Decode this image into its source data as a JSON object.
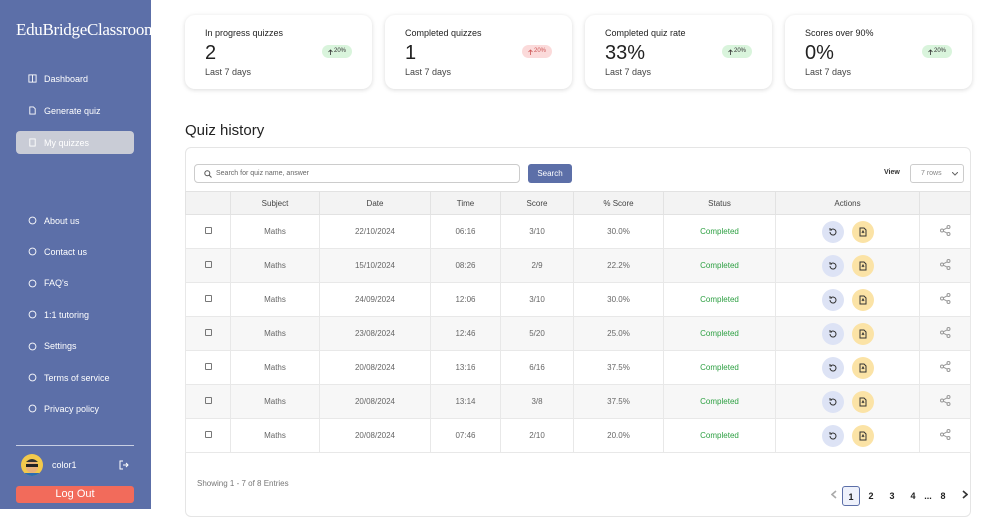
{
  "sidebar": {
    "brand": "EduBridgeClassroom",
    "nav": [
      "Dashboard",
      "Generate quiz",
      "My quizzes"
    ],
    "nav_bottom": [
      "About us",
      "Contact us",
      "FAQ's",
      "1:1 tutoring",
      "Settings",
      "Terms of service",
      "Privacy policy"
    ],
    "user": "color1",
    "logout": "Log Out"
  },
  "stats": [
    {
      "title": "In progress quizzes",
      "value": "2",
      "change": "20%",
      "period": "Last 7 days"
    },
    {
      "title": "Completed quizzes",
      "value": "1",
      "change": "20%",
      "period": "Last 7 days"
    },
    {
      "title": "Completed quiz rate",
      "value": "33%",
      "change": "20%",
      "period": "Last 7 days"
    },
    {
      "title": "Scores over 90%",
      "value": "0%",
      "change": "20%",
      "period": "Last 7 days"
    }
  ],
  "quiz_history": {
    "title": "Quiz history",
    "search_placeholder": "Search for quiz name, answer",
    "search_button": "Search",
    "view_label": "View",
    "view_select": "7 rows",
    "columns": [
      "Subject",
      "Date",
      "Time",
      "Score",
      "% Score",
      "Status",
      "Actions"
    ],
    "rows": [
      [
        "Maths",
        "22/10/2024",
        "06:16",
        "3/10",
        "30.0%",
        "Completed"
      ],
      [
        "Maths",
        "15/10/2024",
        "08:26",
        "2/9",
        "22.2%",
        "Completed"
      ],
      [
        "Maths",
        "24/09/2024",
        "12:06",
        "3/10",
        "30.0%",
        "Completed"
      ],
      [
        "Maths",
        "23/08/2024",
        "12:46",
        "5/20",
        "25.0%",
        "Completed"
      ],
      [
        "Maths",
        "20/08/2024",
        "13:16",
        "6/16",
        "37.5%",
        "Completed"
      ],
      [
        "Maths",
        "20/08/2024",
        "13:14",
        "3/8",
        "37.5%",
        "Completed"
      ],
      [
        "Maths",
        "20/08/2024",
        "07:46",
        "2/10",
        "20.0%",
        "Completed"
      ]
    ],
    "footer": "Showing 1 - 7 of 8 Entries",
    "pages": [
      1,
      2,
      3,
      4,
      8
    ],
    "ellipsis": "..."
  }
}
